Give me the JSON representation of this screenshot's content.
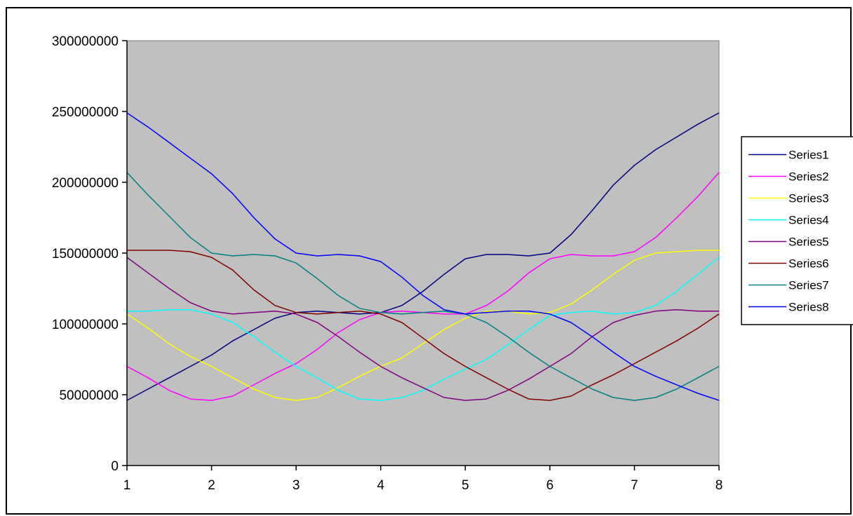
{
  "chart_data": {
    "type": "line",
    "title": "",
    "xlabel": "",
    "ylabel": "",
    "xlim": [
      1,
      8
    ],
    "ylim": [
      0,
      300000000
    ],
    "x_ticks": [
      1,
      2,
      3,
      4,
      5,
      6,
      7,
      8
    ],
    "x_tick_labels": [
      "1",
      "2",
      "3",
      "4",
      "5",
      "6",
      "7",
      "8"
    ],
    "y_ticks": [
      0,
      50000000,
      100000000,
      150000000,
      200000000,
      250000000,
      300000000
    ],
    "y_tick_labels": [
      "0",
      "50000000",
      "100000000",
      "150000000",
      "200000000",
      "250000000",
      "300000000"
    ],
    "grid": false,
    "plot_background": "#c0c0c0",
    "legend_position": "right",
    "x": [
      1,
      1.25,
      1.5,
      1.75,
      2,
      2.25,
      2.5,
      2.75,
      3,
      3.25,
      3.5,
      3.75,
      4,
      4.25,
      4.5,
      4.75,
      5,
      5.25,
      5.5,
      5.75,
      6,
      6.25,
      6.5,
      6.75,
      7,
      7.25,
      7.5,
      7.75,
      8
    ],
    "series": [
      {
        "name": "Series1",
        "color": "#000080",
        "values": [
          46000000,
          54000000,
          62000000,
          70000000,
          78000000,
          88000000,
          96000000,
          104000000,
          108000000,
          109000000,
          108000000,
          107000000,
          108000000,
          113000000,
          123000000,
          135000000,
          146000000,
          149000000,
          149000000,
          148000000,
          150000000,
          163000000,
          180000000,
          198000000,
          212000000,
          223000000,
          232000000,
          241000000,
          249000000
        ]
      },
      {
        "name": "Series2",
        "color": "#ff00ff",
        "values": [
          70000000,
          62000000,
          53000000,
          47000000,
          46000000,
          49000000,
          57000000,
          65000000,
          72000000,
          82000000,
          94000000,
          103000000,
          108000000,
          109000000,
          108000000,
          107000000,
          107000000,
          113000000,
          123000000,
          136000000,
          146000000,
          149000000,
          148000000,
          148000000,
          151000000,
          161000000,
          175000000,
          190000000,
          207000000
        ]
      },
      {
        "name": "Series3",
        "color": "#ffff00",
        "values": [
          107000000,
          97000000,
          86000000,
          77000000,
          70000000,
          62000000,
          54000000,
          48000000,
          46000000,
          48000000,
          55000000,
          63000000,
          70000000,
          76000000,
          86000000,
          96000000,
          104000000,
          109000000,
          109000000,
          107000000,
          108000000,
          114000000,
          124000000,
          135000000,
          145000000,
          150000000,
          151000000,
          152000000,
          152000000
        ]
      },
      {
        "name": "Series4",
        "color": "#00ffff",
        "values": [
          109000000,
          109000000,
          110000000,
          110000000,
          107000000,
          101000000,
          91000000,
          80000000,
          70000000,
          62000000,
          53000000,
          47000000,
          46000000,
          48000000,
          53000000,
          61000000,
          68000000,
          75000000,
          85000000,
          96000000,
          106000000,
          108000000,
          109000000,
          107000000,
          108000000,
          113000000,
          123000000,
          135000000,
          147000000
        ]
      },
      {
        "name": "Series5",
        "color": "#800080",
        "values": [
          147000000,
          136000000,
          125000000,
          115000000,
          109000000,
          107000000,
          108000000,
          109000000,
          107000000,
          101000000,
          91000000,
          80000000,
          70000000,
          62000000,
          55000000,
          48000000,
          46000000,
          47000000,
          53000000,
          61000000,
          70000000,
          79000000,
          91000000,
          101000000,
          106000000,
          109000000,
          110000000,
          109000000,
          109000000
        ]
      },
      {
        "name": "Series6",
        "color": "#800000",
        "values": [
          152000000,
          152000000,
          152000000,
          151000000,
          147000000,
          138000000,
          124000000,
          113000000,
          108000000,
          107000000,
          108000000,
          109000000,
          107000000,
          101000000,
          90000000,
          79000000,
          70000000,
          62000000,
          54000000,
          47000000,
          46000000,
          49000000,
          57000000,
          64000000,
          72000000,
          80000000,
          88000000,
          97000000,
          107000000
        ]
      },
      {
        "name": "Series7",
        "color": "#008080",
        "values": [
          207000000,
          191000000,
          176000000,
          161000000,
          150000000,
          148000000,
          149000000,
          148000000,
          143000000,
          132000000,
          120000000,
          111000000,
          108000000,
          107000000,
          108000000,
          109000000,
          107000000,
          101000000,
          91000000,
          80000000,
          70000000,
          62000000,
          54000000,
          48000000,
          46000000,
          48000000,
          54000000,
          62000000,
          70000000
        ]
      },
      {
        "name": "Series8",
        "color": "#0000ff",
        "values": [
          249000000,
          239000000,
          228000000,
          217000000,
          206000000,
          192000000,
          175000000,
          160000000,
          150000000,
          148000000,
          149000000,
          148000000,
          144000000,
          133000000,
          120000000,
          110000000,
          107000000,
          108000000,
          109000000,
          109000000,
          107000000,
          101000000,
          91000000,
          80000000,
          70000000,
          63000000,
          57000000,
          51000000,
          46000000
        ]
      }
    ]
  }
}
